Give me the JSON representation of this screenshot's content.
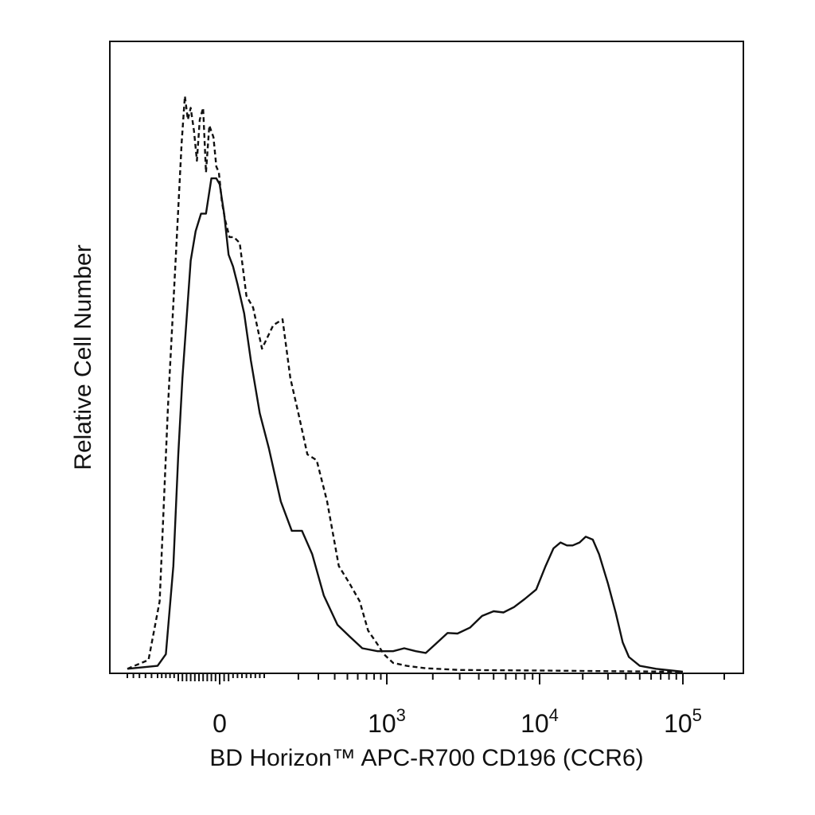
{
  "chart_data": {
    "type": "line",
    "title": "",
    "xlabel": "BD Horizon™ APC-R700 CD196 (CCR6)",
    "ylabel": "Relative Cell Number",
    "x_scale": "biexponential (logicle)",
    "xlim": [
      -200,
      200000
    ],
    "ylim": [
      0,
      100
    ],
    "x_ticks": [
      {
        "base": "0",
        "exp": ""
      },
      {
        "base": "10",
        "exp": "3"
      },
      {
        "base": "10",
        "exp": "4"
      },
      {
        "base": "10",
        "exp": "5"
      }
    ],
    "grid": false,
    "legend": "none",
    "series": [
      {
        "line_style": "dashed",
        "color": "#111111",
        "points": [
          [
            -200,
            0.5
          ],
          [
            -165,
            2
          ],
          [
            -145,
            12
          ],
          [
            -125,
            45
          ],
          [
            -105,
            72
          ],
          [
            -92,
            90
          ],
          [
            -84,
            98
          ],
          [
            -77,
            94
          ],
          [
            -70,
            96
          ],
          [
            -62,
            92
          ],
          [
            -55,
            87
          ],
          [
            -48,
            94
          ],
          [
            -40,
            96
          ],
          [
            -33,
            85
          ],
          [
            -25,
            93
          ],
          [
            -15,
            91
          ],
          [
            -8,
            86
          ],
          [
            -2,
            85
          ],
          [
            5,
            80
          ],
          [
            12,
            77
          ],
          [
            22,
            74
          ],
          [
            32,
            74
          ],
          [
            45,
            73
          ],
          [
            60,
            64
          ],
          [
            75,
            62
          ],
          [
            95,
            55
          ],
          [
            120,
            59
          ],
          [
            145,
            60
          ],
          [
            170,
            50
          ],
          [
            200,
            44
          ],
          [
            240,
            37
          ],
          [
            290,
            36
          ],
          [
            350,
            29
          ],
          [
            430,
            18
          ],
          [
            520,
            15
          ],
          [
            620,
            12
          ],
          [
            720,
            7
          ],
          [
            830,
            5
          ],
          [
            950,
            3
          ],
          [
            1100,
            1.5
          ],
          [
            1350,
            1
          ],
          [
            1800,
            0.6
          ],
          [
            3000,
            0.3
          ],
          [
            10000,
            0.2
          ],
          [
            30000,
            0.1
          ],
          [
            100000,
            0
          ]
        ]
      },
      {
        "line_style": "solid",
        "color": "#111111",
        "points": [
          [
            -200,
            0.5
          ],
          [
            -150,
            1
          ],
          [
            -130,
            3
          ],
          [
            -112,
            18
          ],
          [
            -100,
            37
          ],
          [
            -90,
            50
          ],
          [
            -80,
            60
          ],
          [
            -70,
            70
          ],
          [
            -58,
            75
          ],
          [
            -45,
            78
          ],
          [
            -33,
            78
          ],
          [
            -20,
            84
          ],
          [
            -8,
            84
          ],
          [
            0,
            83
          ],
          [
            10,
            78
          ],
          [
            20,
            71
          ],
          [
            30,
            69
          ],
          [
            40,
            66
          ],
          [
            55,
            61
          ],
          [
            70,
            53
          ],
          [
            90,
            44
          ],
          [
            110,
            38
          ],
          [
            140,
            29
          ],
          [
            175,
            24
          ],
          [
            215,
            24
          ],
          [
            265,
            20
          ],
          [
            330,
            13
          ],
          [
            420,
            8
          ],
          [
            520,
            6
          ],
          [
            650,
            4
          ],
          [
            850,
            3.5
          ],
          [
            1100,
            3.5
          ],
          [
            1300,
            4
          ],
          [
            1550,
            3.5
          ],
          [
            1800,
            3.2
          ],
          [
            2100,
            4.8
          ],
          [
            2500,
            6.6
          ],
          [
            2900,
            6.5
          ],
          [
            3500,
            7.5
          ],
          [
            4200,
            9.5
          ],
          [
            5000,
            10.3
          ],
          [
            5800,
            10.1
          ],
          [
            6800,
            11
          ],
          [
            8000,
            12.4
          ],
          [
            9500,
            14
          ],
          [
            11000,
            18
          ],
          [
            12500,
            21
          ],
          [
            14000,
            22
          ],
          [
            15500,
            21.5
          ],
          [
            17000,
            21.5
          ],
          [
            19000,
            22
          ],
          [
            21000,
            23
          ],
          [
            23500,
            22.5
          ],
          [
            26000,
            20
          ],
          [
            30000,
            15
          ],
          [
            34000,
            10
          ],
          [
            38000,
            5
          ],
          [
            42000,
            2.5
          ],
          [
            50000,
            1
          ],
          [
            65000,
            0.5
          ],
          [
            100000,
            0
          ]
        ]
      }
    ]
  }
}
